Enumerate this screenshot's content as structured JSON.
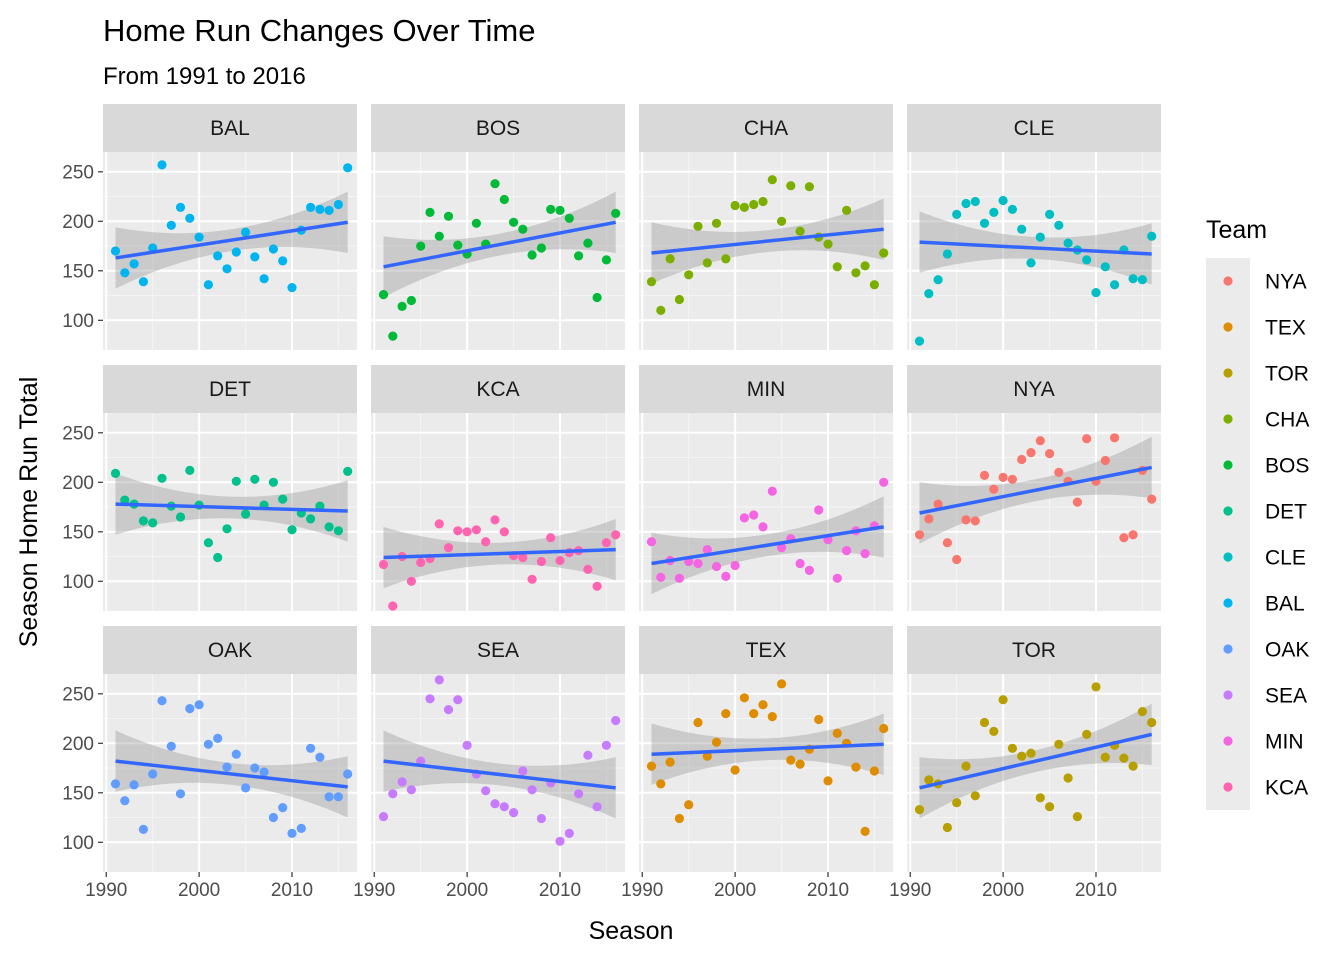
{
  "chart_data": {
    "type": "scatter",
    "title": "Home Run Changes Over Time",
    "subtitle": "From 1991 to 2016",
    "xlabel": "Season",
    "ylabel": "Season Home Run Total",
    "xlim": [
      1990,
      2017
    ],
    "ylim": [
      70,
      270
    ],
    "x_ticks": [
      1990,
      2000,
      2010
    ],
    "y_ticks": [
      100,
      150,
      200,
      250
    ],
    "grid": true,
    "facets": "wrap by team, 3 rows x 4 columns",
    "trend": "linear fit with confidence band",
    "trend_color": "#3366ff",
    "legend": {
      "title": "Team",
      "position": "right",
      "entries": [
        {
          "name": "NYA",
          "color": "#F8766D"
        },
        {
          "name": "TEX",
          "color": "#DE8C00"
        },
        {
          "name": "TOR",
          "color": "#B79F00"
        },
        {
          "name": "CHA",
          "color": "#7CAE00"
        },
        {
          "name": "BOS",
          "color": "#00BA38"
        },
        {
          "name": "DET",
          "color": "#00C08B"
        },
        {
          "name": "CLE",
          "color": "#00BFC4"
        },
        {
          "name": "BAL",
          "color": "#00B4F0"
        },
        {
          "name": "OAK",
          "color": "#619CFF"
        },
        {
          "name": "SEA",
          "color": "#C77CFF"
        },
        {
          "name": "MIN",
          "color": "#F564E3"
        },
        {
          "name": "KCA",
          "color": "#FF64B0"
        }
      ]
    },
    "panels": [
      {
        "team": "BAL",
        "trend": [
          163,
          199
        ],
        "x": [
          1991,
          1992,
          1993,
          1994,
          1995,
          1996,
          1997,
          1998,
          1999,
          2000,
          2001,
          2002,
          2003,
          2004,
          2005,
          2006,
          2007,
          2008,
          2009,
          2010,
          2011,
          2012,
          2013,
          2014,
          2015,
          2016
        ],
        "y": [
          170,
          148,
          157,
          139,
          173,
          257,
          196,
          214,
          203,
          184,
          136,
          165,
          152,
          169,
          189,
          164,
          142,
          172,
          160,
          133,
          191,
          214,
          212,
          211,
          217,
          254
        ]
      },
      {
        "team": "BOS",
        "trend": [
          154,
          199
        ],
        "x": [
          1991,
          1992,
          1993,
          1994,
          1995,
          1996,
          1997,
          1998,
          1999,
          2000,
          2001,
          2002,
          2003,
          2004,
          2005,
          2006,
          2007,
          2008,
          2009,
          2010,
          2011,
          2012,
          2013,
          2014,
          2015,
          2016
        ],
        "y": [
          126,
          84,
          114,
          120,
          175,
          209,
          185,
          205,
          176,
          167,
          198,
          177,
          238,
          222,
          199,
          192,
          166,
          173,
          212,
          211,
          203,
          165,
          178,
          123,
          161,
          208
        ]
      },
      {
        "team": "CHA",
        "trend": [
          168,
          192
        ],
        "x": [
          1991,
          1992,
          1993,
          1994,
          1995,
          1996,
          1997,
          1998,
          1999,
          2000,
          2001,
          2002,
          2003,
          2004,
          2005,
          2006,
          2007,
          2008,
          2009,
          2010,
          2011,
          2012,
          2013,
          2014,
          2015,
          2016
        ],
        "y": [
          139,
          110,
          162,
          121,
          146,
          195,
          158,
          198,
          162,
          216,
          214,
          217,
          220,
          242,
          200,
          236,
          190,
          235,
          184,
          177,
          154,
          211,
          148,
          155,
          136,
          168
        ]
      },
      {
        "team": "CLE",
        "trend": [
          179,
          167
        ],
        "x": [
          1991,
          1992,
          1993,
          1994,
          1995,
          1996,
          1997,
          1998,
          1999,
          2000,
          2001,
          2002,
          2003,
          2004,
          2005,
          2006,
          2007,
          2008,
          2009,
          2010,
          2011,
          2012,
          2013,
          2014,
          2015,
          2016
        ],
        "y": [
          79,
          127,
          141,
          167,
          207,
          218,
          220,
          198,
          209,
          221,
          212,
          192,
          158,
          184,
          207,
          196,
          178,
          171,
          161,
          128,
          154,
          136,
          171,
          142,
          141,
          185
        ]
      },
      {
        "team": "DET",
        "trend": [
          178,
          171
        ],
        "x": [
          1991,
          1992,
          1993,
          1994,
          1995,
          1996,
          1997,
          1998,
          1999,
          2000,
          2001,
          2002,
          2003,
          2004,
          2005,
          2006,
          2007,
          2008,
          2009,
          2010,
          2011,
          2012,
          2013,
          2014,
          2015,
          2016
        ],
        "y": [
          209,
          182,
          178,
          161,
          159,
          204,
          176,
          165,
          212,
          177,
          139,
          124,
          153,
          201,
          168,
          203,
          177,
          200,
          183,
          152,
          169,
          163,
          176,
          155,
          151,
          211
        ]
      },
      {
        "team": "KCA",
        "trend": [
          124,
          132
        ],
        "x": [
          1991,
          1992,
          1993,
          1994,
          1995,
          1996,
          1997,
          1998,
          1999,
          2000,
          2001,
          2002,
          2003,
          2004,
          2005,
          2006,
          2007,
          2008,
          2009,
          2010,
          2011,
          2012,
          2013,
          2014,
          2015,
          2016
        ],
        "y": [
          117,
          75,
          125,
          100,
          119,
          123,
          158,
          134,
          151,
          150,
          152,
          140,
          162,
          150,
          126,
          124,
          102,
          120,
          144,
          121,
          129,
          131,
          112,
          95,
          139,
          147
        ]
      },
      {
        "team": "MIN",
        "trend": [
          118,
          155
        ],
        "x": [
          1991,
          1992,
          1993,
          1994,
          1995,
          1996,
          1997,
          1998,
          1999,
          2000,
          2001,
          2002,
          2003,
          2004,
          2005,
          2006,
          2007,
          2008,
          2009,
          2010,
          2011,
          2012,
          2013,
          2014,
          2015,
          2016
        ],
        "y": [
          140,
          104,
          121,
          103,
          120,
          118,
          132,
          115,
          105,
          116,
          164,
          167,
          155,
          191,
          134,
          143,
          118,
          111,
          172,
          142,
          103,
          131,
          151,
          128,
          156,
          200
        ]
      },
      {
        "team": "NYA",
        "trend": [
          169,
          215
        ],
        "x": [
          1991,
          1992,
          1993,
          1994,
          1995,
          1996,
          1997,
          1998,
          1999,
          2000,
          2001,
          2002,
          2003,
          2004,
          2005,
          2006,
          2007,
          2008,
          2009,
          2010,
          2011,
          2012,
          2013,
          2014,
          2015,
          2016
        ],
        "y": [
          147,
          163,
          178,
          139,
          122,
          162,
          161,
          207,
          193,
          205,
          203,
          223,
          230,
          242,
          229,
          210,
          201,
          180,
          244,
          201,
          222,
          245,
          144,
          147,
          212,
          183
        ]
      },
      {
        "team": "OAK",
        "trend": [
          182,
          156
        ],
        "x": [
          1991,
          1992,
          1993,
          1994,
          1995,
          1996,
          1997,
          1998,
          1999,
          2000,
          2001,
          2002,
          2003,
          2004,
          2005,
          2006,
          2007,
          2008,
          2009,
          2010,
          2011,
          2012,
          2013,
          2014,
          2015,
          2016
        ],
        "y": [
          159,
          142,
          158,
          113,
          169,
          243,
          197,
          149,
          235,
          239,
          199,
          205,
          176,
          189,
          155,
          175,
          171,
          125,
          135,
          109,
          114,
          195,
          186,
          146,
          146,
          169
        ]
      },
      {
        "team": "SEA",
        "trend": [
          182,
          155
        ],
        "x": [
          1991,
          1992,
          1993,
          1994,
          1995,
          1996,
          1997,
          1998,
          1999,
          2000,
          2001,
          2002,
          2003,
          2004,
          2005,
          2006,
          2007,
          2008,
          2009,
          2010,
          2011,
          2012,
          2013,
          2014,
          2015,
          2016
        ],
        "y": [
          126,
          149,
          161,
          153,
          182,
          245,
          264,
          234,
          244,
          198,
          169,
          152,
          139,
          136,
          130,
          172,
          153,
          124,
          160,
          101,
          109,
          149,
          188,
          136,
          198,
          223
        ]
      },
      {
        "team": "TEX",
        "trend": [
          189,
          199
        ],
        "x": [
          1991,
          1992,
          1993,
          1994,
          1995,
          1996,
          1997,
          1998,
          1999,
          2000,
          2001,
          2002,
          2003,
          2004,
          2005,
          2006,
          2007,
          2008,
          2009,
          2010,
          2011,
          2012,
          2013,
          2014,
          2015,
          2016
        ],
        "y": [
          177,
          159,
          181,
          124,
          138,
          221,
          187,
          201,
          230,
          173,
          246,
          230,
          239,
          227,
          260,
          183,
          179,
          194,
          224,
          162,
          210,
          200,
          176,
          111,
          172,
          215
        ]
      },
      {
        "team": "TOR",
        "trend": [
          155,
          209
        ],
        "x": [
          1991,
          1992,
          1993,
          1994,
          1995,
          1996,
          1997,
          1998,
          1999,
          2000,
          2001,
          2002,
          2003,
          2004,
          2005,
          2006,
          2007,
          2008,
          2009,
          2010,
          2011,
          2012,
          2013,
          2014,
          2015,
          2016
        ],
        "y": [
          133,
          163,
          159,
          115,
          140,
          177,
          147,
          221,
          212,
          244,
          195,
          187,
          190,
          145,
          136,
          199,
          165,
          126,
          209,
          257,
          186,
          198,
          185,
          177,
          232,
          221
        ]
      }
    ]
  }
}
